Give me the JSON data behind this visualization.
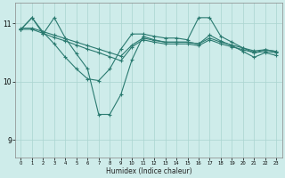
{
  "xlabel": "Humidex (Indice chaleur)",
  "xlim": [
    -0.5,
    23.5
  ],
  "ylim": [
    8.7,
    11.35
  ],
  "yticks": [
    9,
    10,
    11
  ],
  "xticks": [
    0,
    1,
    2,
    3,
    4,
    5,
    6,
    7,
    8,
    9,
    10,
    11,
    12,
    13,
    14,
    15,
    16,
    17,
    18,
    19,
    20,
    21,
    22,
    23
  ],
  "bg_color": "#ceecea",
  "grid_color": "#aad4d0",
  "line_color": "#2a7a70",
  "series": [
    {
      "x": [
        0,
        1,
        2,
        3,
        4,
        5,
        6,
        7,
        8,
        9,
        10,
        11,
        12,
        13,
        14,
        15,
        16,
        17,
        18,
        19,
        20,
        21,
        22,
        23
      ],
      "y": [
        10.9,
        10.9,
        10.83,
        10.76,
        10.7,
        10.63,
        10.56,
        10.5,
        10.43,
        10.36,
        10.6,
        10.72,
        10.68,
        10.65,
        10.65,
        10.65,
        10.62,
        10.72,
        10.65,
        10.6,
        10.55,
        10.5,
        10.52,
        10.5
      ]
    },
    {
      "x": [
        0,
        1,
        2,
        3,
        4,
        5,
        6,
        7,
        8,
        9,
        10,
        11,
        12,
        13,
        14,
        15,
        16,
        17,
        18,
        19,
        20,
        21,
        22,
        23
      ],
      "y": [
        10.92,
        10.92,
        10.86,
        10.8,
        10.74,
        10.68,
        10.62,
        10.56,
        10.5,
        10.44,
        10.63,
        10.75,
        10.71,
        10.68,
        10.68,
        10.68,
        10.65,
        10.75,
        10.68,
        10.63,
        10.58,
        10.53,
        10.55,
        10.52
      ]
    },
    {
      "x": [
        0,
        1,
        2,
        3,
        4,
        5,
        6,
        7,
        8,
        9,
        10,
        11,
        12,
        13,
        14,
        15,
        16,
        17,
        18,
        19,
        20,
        21,
        22,
        23
      ],
      "y": [
        10.9,
        11.1,
        10.85,
        10.65,
        10.42,
        10.22,
        10.05,
        10.02,
        10.22,
        10.56,
        10.82,
        10.82,
        10.78,
        10.75,
        10.75,
        10.72,
        11.1,
        11.1,
        10.78,
        10.68,
        10.58,
        10.5,
        10.55,
        10.52
      ]
    },
    {
      "x": [
        0,
        1,
        2,
        3,
        4,
        5,
        6,
        7,
        8,
        9,
        10,
        11,
        12,
        13,
        14,
        15,
        16,
        17,
        18,
        19,
        20,
        21,
        22,
        23
      ],
      "y": [
        10.9,
        11.1,
        10.82,
        11.1,
        10.75,
        10.48,
        10.22,
        9.44,
        9.44,
        9.78,
        10.38,
        10.78,
        10.72,
        10.68,
        10.68,
        10.68,
        10.65,
        10.8,
        10.7,
        10.62,
        10.52,
        10.42,
        10.5,
        10.45
      ]
    }
  ]
}
